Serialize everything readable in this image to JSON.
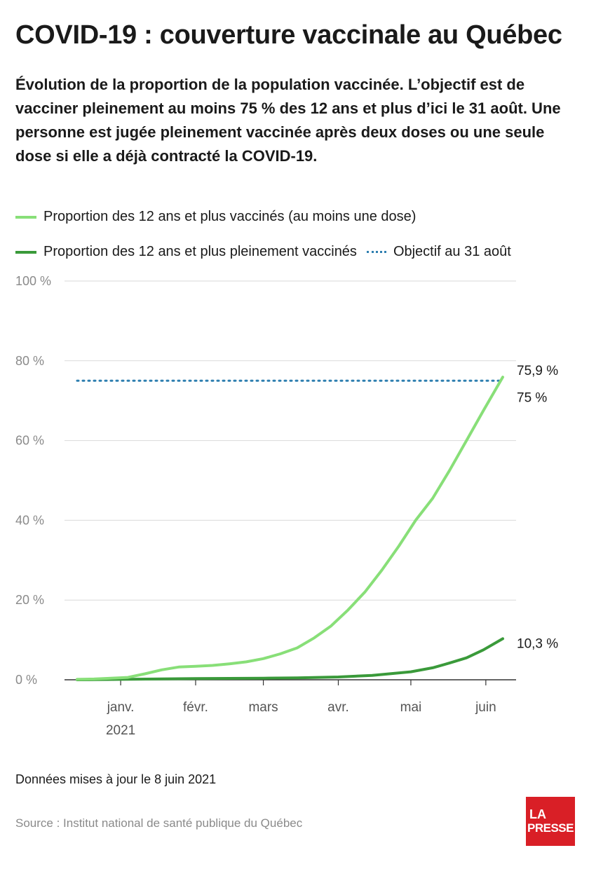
{
  "header": {
    "title": "COVID-19 : couverture vaccinale au Québec",
    "subtitle": "Évolution de la proportion de la population vaccinée. L’objectif est de vacciner pleinement au moins 75 % des 12 ans et plus d’ici le 31 août. Une personne est jugée pleinement vaccinée après deux doses ou une seule dose si elle a déjà contracté la COVID-19."
  },
  "legend": {
    "one_dose": "Proportion des 12 ans et plus vaccinés (au moins une dose)",
    "full": "Proportion des 12 ans et plus pleinement vaccinés",
    "target": "Objectif au 31 août"
  },
  "footer": {
    "updated": "Données mises à jour le 8 juin 2021",
    "source": "Source : Institut national de santé publique du Québec",
    "logo_line1": "LA",
    "logo_line2": "PRESSE"
  },
  "colors": {
    "one_dose": "#88df78",
    "full": "#3a9a3a",
    "target": "#2f7fb0",
    "grid": "#d9d9d9",
    "axis_text": "#8a8a8a",
    "logo": "#d91f26"
  },
  "chart_data": {
    "type": "line",
    "x_start": "2020-12-14",
    "x_end": "2021-06-08",
    "ylim": [
      0,
      100
    ],
    "y_ticks": [
      0,
      20,
      40,
      60,
      80,
      100
    ],
    "y_tick_labels": [
      "0 %",
      "20 %",
      "40 %",
      "60 %",
      "80 %",
      "100 %"
    ],
    "x_ticks": [
      {
        "date": "2021-01-01",
        "label": "janv.",
        "sub": "2021"
      },
      {
        "date": "2021-02-01",
        "label": "févr.",
        "sub": ""
      },
      {
        "date": "2021-03-01",
        "label": "mars",
        "sub": ""
      },
      {
        "date": "2021-04-01",
        "label": "avr.",
        "sub": ""
      },
      {
        "date": "2021-05-01",
        "label": "mai",
        "sub": ""
      },
      {
        "date": "2021-06-01",
        "label": "juin",
        "sub": ""
      }
    ],
    "series": [
      {
        "name": "Proportion des 12 ans et plus vaccinés (au moins une dose)",
        "color": "#88df78",
        "end_label": "75,9 %",
        "x": [
          "2020-12-14",
          "2020-12-21",
          "2020-12-28",
          "2021-01-04",
          "2021-01-11",
          "2021-01-18",
          "2021-01-25",
          "2021-02-01",
          "2021-02-08",
          "2021-02-15",
          "2021-02-22",
          "2021-03-01",
          "2021-03-08",
          "2021-03-15",
          "2021-03-22",
          "2021-03-29",
          "2021-04-05",
          "2021-04-12",
          "2021-04-19",
          "2021-04-26",
          "2021-05-03",
          "2021-05-10",
          "2021-05-17",
          "2021-05-24",
          "2021-05-31",
          "2021-06-08"
        ],
        "y": [
          0.1,
          0.2,
          0.4,
          0.6,
          1.5,
          2.5,
          3.2,
          3.4,
          3.6,
          4.0,
          4.5,
          5.3,
          6.5,
          8.0,
          10.5,
          13.5,
          17.5,
          22.0,
          27.5,
          33.5,
          40.0,
          45.5,
          52.5,
          60.0,
          67.5,
          75.9
        ]
      },
      {
        "name": "Proportion des 12 ans et plus pleinement vaccinés",
        "color": "#3a9a3a",
        "end_label": "10,3 %",
        "x": [
          "2020-12-14",
          "2021-01-01",
          "2021-01-15",
          "2021-02-01",
          "2021-02-15",
          "2021-03-01",
          "2021-03-15",
          "2021-04-01",
          "2021-04-15",
          "2021-05-01",
          "2021-05-10",
          "2021-05-17",
          "2021-05-24",
          "2021-05-31",
          "2021-06-08"
        ],
        "y": [
          0.0,
          0.1,
          0.2,
          0.3,
          0.35,
          0.4,
          0.5,
          0.7,
          1.1,
          2.0,
          3.0,
          4.2,
          5.5,
          7.5,
          10.3
        ]
      },
      {
        "name": "Objectif au 31 août",
        "color": "#2f7fb0",
        "end_label": "75 %",
        "x": [
          "2020-12-14",
          "2021-06-08"
        ],
        "y": [
          75,
          75
        ]
      }
    ]
  }
}
